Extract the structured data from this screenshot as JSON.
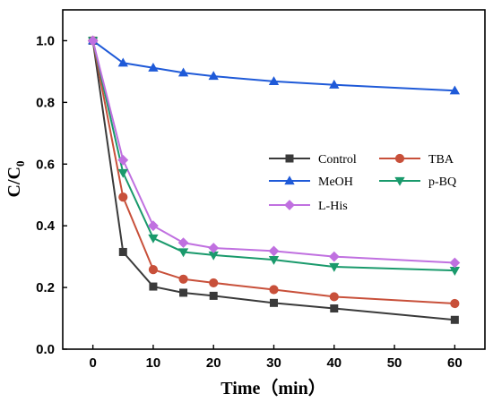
{
  "chart_data": {
    "type": "line",
    "title": "",
    "xlabel": "Time（min）",
    "ylabel": "C/C",
    "ylabel_sub": "0",
    "xlim": [
      -5,
      65
    ],
    "ylim": [
      0,
      1.1
    ],
    "xticks": [
      0,
      10,
      20,
      30,
      40,
      50,
      60
    ],
    "yticks": [
      "0.0",
      "0.2",
      "0.4",
      "0.6",
      "0.8",
      "1.0"
    ],
    "legend_position": "center-right",
    "grid": false,
    "series": [
      {
        "name": "Control",
        "color": "#3a3a3a",
        "marker": "square",
        "x": [
          0,
          5,
          10,
          15,
          20,
          30,
          40,
          60
        ],
        "y": [
          1.0,
          0.315,
          0.203,
          0.183,
          0.173,
          0.15,
          0.132,
          0.095
        ]
      },
      {
        "name": "TBA",
        "color": "#c8503a",
        "marker": "circle",
        "x": [
          0,
          5,
          10,
          15,
          20,
          30,
          40,
          60
        ],
        "y": [
          1.0,
          0.493,
          0.258,
          0.227,
          0.215,
          0.193,
          0.17,
          0.148
        ]
      },
      {
        "name": "MeOH",
        "color": "#1f5ad8",
        "marker": "triangle-up",
        "x": [
          0,
          5,
          10,
          15,
          20,
          30,
          40,
          60
        ],
        "y": [
          1.0,
          0.928,
          0.912,
          0.896,
          0.885,
          0.868,
          0.857,
          0.838
        ]
      },
      {
        "name": "p-BQ",
        "color": "#1a9a6c",
        "marker": "triangle-down",
        "x": [
          0,
          5,
          10,
          15,
          20,
          30,
          40,
          60
        ],
        "y": [
          1.0,
          0.572,
          0.36,
          0.315,
          0.305,
          0.29,
          0.267,
          0.255
        ]
      },
      {
        "name": "L-His",
        "color": "#c070e0",
        "marker": "diamond",
        "x": [
          0,
          5,
          10,
          15,
          20,
          30,
          40,
          60
        ],
        "y": [
          1.0,
          0.613,
          0.4,
          0.345,
          0.328,
          0.318,
          0.3,
          0.28
        ]
      }
    ]
  }
}
